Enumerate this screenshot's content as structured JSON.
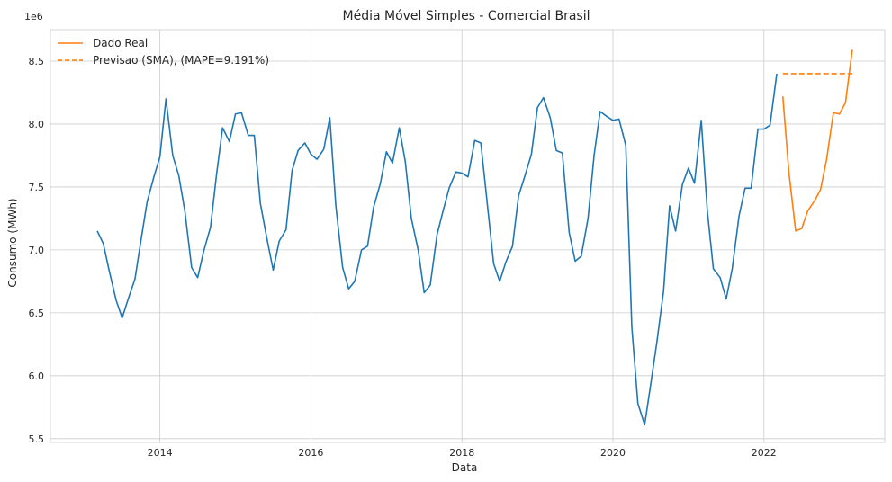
{
  "chart_data": {
    "type": "line",
    "title": "Média Móvel Simples - Comercial Brasil",
    "xlabel": "Data",
    "ylabel": "Consumo (MWh)",
    "y_offset_label": "1e6",
    "xlim": [
      2012.55,
      2023.6
    ],
    "ylim": [
      5.47,
      8.75
    ],
    "x_ticks": [
      2014,
      2016,
      2018,
      2020,
      2022
    ],
    "y_ticks": [
      5.5,
      6.0,
      6.5,
      7.0,
      7.5,
      8.0,
      8.5
    ],
    "grid": true,
    "legend_position": "top-left",
    "colors": {
      "series_history": "#1f77b4",
      "series_real": "#ff7f0e",
      "series_forecast": "#ff7f0e"
    },
    "legend": [
      {
        "label": "Dado Real",
        "style": "solid",
        "color": "#ff7f0e"
      },
      {
        "label": "Previsao (SMA), (MAPE=9.191%)",
        "style": "dashed",
        "color": "#ff7f0e"
      }
    ],
    "series": [
      {
        "role": "history",
        "x": [
          2013.17,
          2013.25,
          2013.33,
          2013.42,
          2013.5,
          2013.58,
          2013.67,
          2013.75,
          2013.83,
          2013.92,
          2014.0,
          2014.08,
          2014.17,
          2014.25,
          2014.33,
          2014.42,
          2014.5,
          2014.58,
          2014.67,
          2014.75,
          2014.83,
          2014.92,
          2015.0,
          2015.08,
          2015.17,
          2015.25,
          2015.33,
          2015.42,
          2015.5,
          2015.58,
          2015.67,
          2015.75,
          2015.83,
          2015.92,
          2016.0,
          2016.08,
          2016.17,
          2016.25,
          2016.33,
          2016.42,
          2016.5,
          2016.58,
          2016.67,
          2016.75,
          2016.83,
          2016.92,
          2017.0,
          2017.08,
          2017.17,
          2017.25,
          2017.33,
          2017.42,
          2017.5,
          2017.58,
          2017.67,
          2017.75,
          2017.83,
          2017.92,
          2018.0,
          2018.08,
          2018.17,
          2018.25,
          2018.33,
          2018.42,
          2018.5,
          2018.58,
          2018.67,
          2018.75,
          2018.83,
          2018.92,
          2019.0,
          2019.08,
          2019.17,
          2019.25,
          2019.33,
          2019.42,
          2019.5,
          2019.58,
          2019.67,
          2019.75,
          2019.83,
          2019.92,
          2020.0,
          2020.08,
          2020.17,
          2020.25,
          2020.33,
          2020.42,
          2020.5,
          2020.58,
          2020.67,
          2020.75,
          2020.83,
          2020.92,
          2021.0,
          2021.08,
          2021.17,
          2021.25,
          2021.33,
          2021.42,
          2021.5,
          2021.58,
          2021.67,
          2021.75,
          2021.83,
          2021.92,
          2022.0,
          2022.08,
          2022.17
        ],
        "values": [
          7.15,
          7.05,
          6.83,
          6.6,
          6.46,
          6.61,
          6.77,
          7.08,
          7.38,
          7.58,
          7.74,
          8.2,
          7.75,
          7.59,
          7.31,
          6.86,
          6.78,
          6.99,
          7.18,
          7.6,
          7.97,
          7.86,
          8.08,
          8.09,
          7.91,
          7.91,
          7.37,
          7.08,
          6.84,
          7.07,
          7.16,
          7.63,
          7.79,
          7.85,
          7.76,
          7.72,
          7.8,
          8.05,
          7.35,
          6.86,
          6.69,
          6.75,
          7.0,
          7.03,
          7.34,
          7.53,
          7.78,
          7.69,
          7.97,
          7.7,
          7.25,
          7.0,
          6.66,
          6.72,
          7.12,
          7.31,
          7.49,
          7.62,
          7.61,
          7.58,
          7.87,
          7.85,
          7.4,
          6.89,
          6.75,
          6.9,
          7.03,
          7.43,
          7.58,
          7.76,
          8.13,
          8.21,
          8.05,
          7.79,
          7.77,
          7.14,
          6.91,
          6.95,
          7.25,
          7.75,
          8.1,
          8.06,
          8.03,
          8.04,
          7.83,
          6.39,
          5.78,
          5.61,
          5.93,
          6.26,
          6.67,
          7.35,
          7.15,
          7.52,
          7.65,
          7.53,
          8.03,
          7.31,
          6.85,
          6.78,
          6.61,
          6.85,
          7.27,
          7.49,
          7.49,
          7.96,
          7.96,
          7.99,
          8.4
        ]
      },
      {
        "role": "real",
        "name": "Dado Real",
        "x": [
          2022.25,
          2022.33,
          2022.42,
          2022.5,
          2022.58,
          2022.67,
          2022.75,
          2022.83,
          2022.92,
          2023.0,
          2023.08,
          2023.17
        ],
        "values": [
          8.22,
          7.62,
          7.15,
          7.17,
          7.31,
          7.39,
          7.48,
          7.72,
          8.09,
          8.08,
          8.17,
          8.59
        ]
      },
      {
        "role": "forecast",
        "name": "Previsao (SMA), (MAPE=9.191%)",
        "x": [
          2022.25,
          2023.17
        ],
        "values": [
          8.4,
          8.4
        ]
      }
    ]
  }
}
